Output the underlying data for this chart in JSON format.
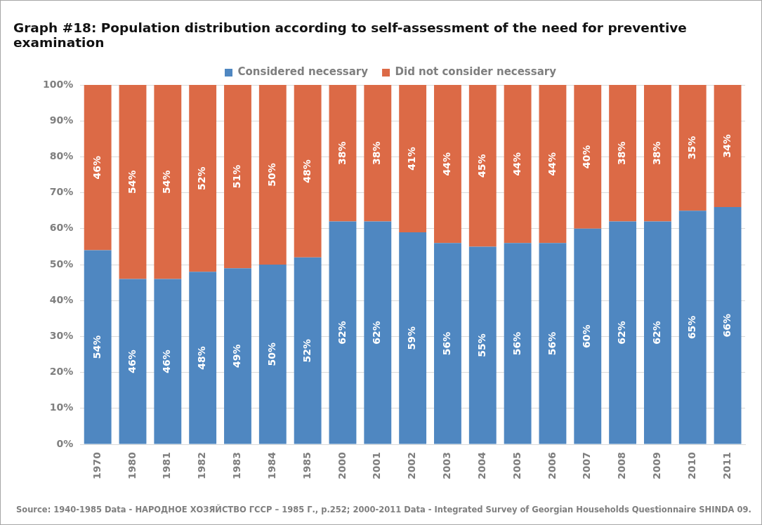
{
  "chart_data": {
    "type": "bar",
    "stacked": true,
    "title": "Graph #18: Population distribution according to self-assessment of the need for preventive examination",
    "categories": [
      "1970",
      "1980",
      "1981",
      "1982",
      "1983",
      "1984",
      "1985",
      "2000",
      "2001",
      "2002",
      "2003",
      "2004",
      "2005",
      "2006",
      "2007",
      "2008",
      "2009",
      "2010",
      "2011"
    ],
    "series": [
      {
        "name": "Considered necessary",
        "color": "#4f87c1",
        "values": [
          54,
          46,
          46,
          48,
          49,
          50,
          52,
          62,
          62,
          59,
          56,
          55,
          56,
          56,
          60,
          62,
          62,
          65,
          66
        ],
        "value_labels": [
          "54%",
          "46%",
          "46%",
          "48%",
          "49%",
          "50%",
          "52%",
          "62%",
          "62%",
          "59%",
          "56%",
          "55%",
          "56%",
          "56%",
          "60%",
          "62%",
          "62%",
          "65%",
          "66%"
        ]
      },
      {
        "name": "Did not consider necessary",
        "color": "#dc6a46",
        "values": [
          46,
          54,
          54,
          52,
          51,
          50,
          48,
          38,
          38,
          41,
          44,
          45,
          44,
          44,
          40,
          38,
          38,
          35,
          34
        ],
        "value_labels": [
          "46%",
          "54%",
          "54%",
          "52%",
          "51%",
          "50%",
          "48%",
          "38%",
          "38%",
          "41%",
          "44%",
          "45%",
          "44%",
          "44%",
          "40%",
          "38%",
          "38%",
          "35%",
          "34%"
        ]
      }
    ],
    "ylim": [
      0,
      100
    ],
    "yticks": [
      {
        "value": 0,
        "label": "0%"
      },
      {
        "value": 10,
        "label": "10%"
      },
      {
        "value": 20,
        "label": "20%"
      },
      {
        "value": 30,
        "label": "30%"
      },
      {
        "value": 40,
        "label": "40%"
      },
      {
        "value": 50,
        "label": "50%"
      },
      {
        "value": 60,
        "label": "60%"
      },
      {
        "value": 70,
        "label": "70%"
      },
      {
        "value": 80,
        "label": "80%"
      },
      {
        "value": 90,
        "label": "90%"
      },
      {
        "value": 100,
        "label": "100%"
      }
    ],
    "grid": "y",
    "legend": "top",
    "annotations": [
      "Source: 1940-1985 Data - НАРОДНОЕ ХОЗЯЙСТВО ГССР – 1985 Г., p.252; 2000-2011 Data - Integrated Survey of Georgian Households Questionnaire SHINDA 09."
    ]
  }
}
